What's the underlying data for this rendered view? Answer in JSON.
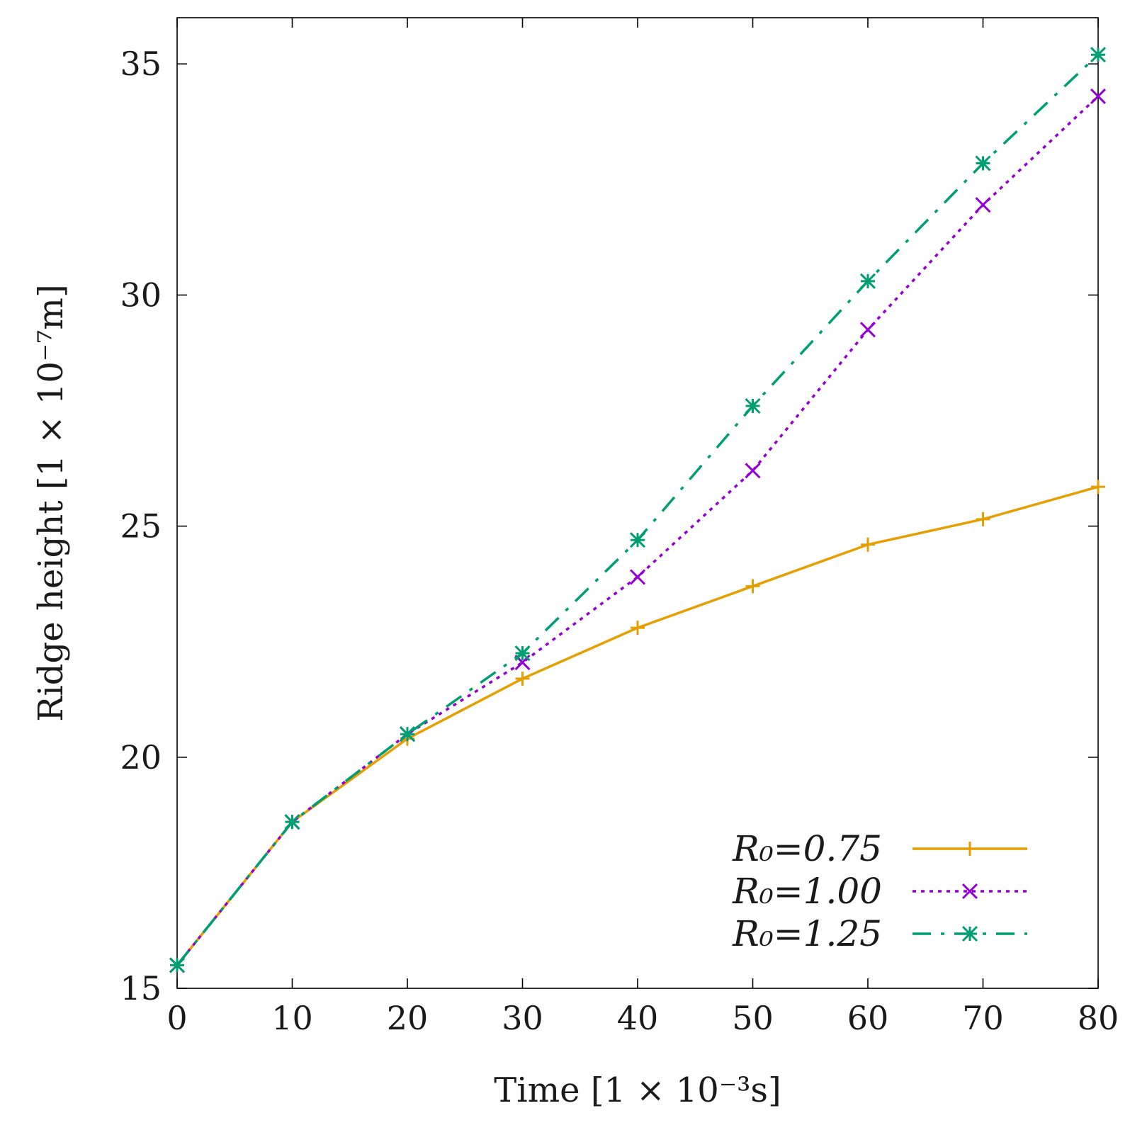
{
  "chart_data": {
    "type": "line",
    "title": "",
    "xlabel": "Time [1 × 10⁻³s]",
    "ylabel": "Ridge height [1 × 10⁻⁷m]",
    "xlim": [
      0,
      80
    ],
    "ylim": [
      15,
      36
    ],
    "xticks": [
      0,
      10,
      20,
      30,
      40,
      50,
      60,
      70,
      80
    ],
    "yticks": [
      15,
      20,
      25,
      30,
      35
    ],
    "grid": false,
    "legend_position": "bottom-right",
    "x": [
      0,
      10,
      20,
      30,
      40,
      50,
      60,
      70,
      80
    ],
    "series": [
      {
        "name": "R₀=0.75",
        "color": "#e69f00",
        "line_style": "solid",
        "marker": "plus",
        "values": [
          15.5,
          18.6,
          20.4,
          21.7,
          22.8,
          23.7,
          24.6,
          25.15,
          25.85
        ]
      },
      {
        "name": "R₀=1.00",
        "color": "#9400d3",
        "line_style": "dotted",
        "marker": "cross",
        "values": [
          15.5,
          18.6,
          20.5,
          22.05,
          23.9,
          26.2,
          29.25,
          31.95,
          34.3
        ]
      },
      {
        "name": "R₀=1.25",
        "color": "#009e73",
        "line_style": "dash-dot",
        "marker": "star",
        "values": [
          15.5,
          18.6,
          20.5,
          22.25,
          24.7,
          27.6,
          30.3,
          32.85,
          35.2
        ]
      }
    ]
  }
}
